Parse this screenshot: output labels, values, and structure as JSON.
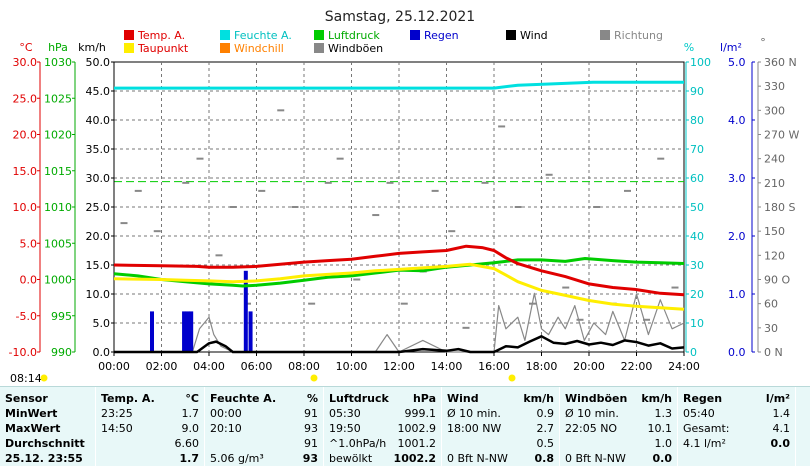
{
  "chart_data": {
    "type": "line",
    "title": "Samstag, 25.12.2021",
    "x_ticks": [
      "00:00",
      "02:00",
      "04:00",
      "06:00",
      "08:00",
      "10:00",
      "12:00",
      "14:00",
      "16:00",
      "18:00",
      "20:00",
      "22:00",
      "24:00"
    ],
    "xlim": [
      0,
      24
    ],
    "axes": {
      "temp": {
        "unit": "°C",
        "range": [
          -10,
          30
        ],
        "ticks": [
          "30.0",
          "25.0",
          "20.0",
          "15.0",
          "10.0",
          "5.0",
          "0.0",
          "-5.0",
          "-10.0"
        ],
        "color": "#e00000"
      },
      "pressure": {
        "unit": "hPa",
        "range": [
          990,
          1030
        ],
        "ticks": [
          "1030",
          "1025",
          "1020",
          "1015",
          "1010",
          "1005",
          "1000",
          "995",
          "990"
        ],
        "color": "#00aa00"
      },
      "wind": {
        "unit": "km/h",
        "range": [
          0,
          50
        ],
        "ticks": [
          "50.0",
          "45.0",
          "40.0",
          "35.0",
          "30.0",
          "25.0",
          "20.0",
          "15.0",
          "10.0",
          "5.0",
          "0.0"
        ],
        "color": "#000000"
      },
      "humidity": {
        "unit": "%",
        "range": [
          0,
          100
        ],
        "ticks": [
          "100",
          "90",
          "80",
          "70",
          "60",
          "50",
          "40",
          "30",
          "20",
          "10",
          "0"
        ],
        "color": "#00c8c8"
      },
      "rain": {
        "unit": "l/m²",
        "range": [
          0,
          5
        ],
        "ticks": [
          "5.0",
          "4.0",
          "3.0",
          "2.0",
          "1.0",
          "0.0"
        ],
        "color": "#0000cc"
      },
      "direction": {
        "unit": "°",
        "range": [
          0,
          360
        ],
        "ticks": [
          "360 N",
          "330",
          "300",
          "270 W",
          "240",
          "210",
          "180 S",
          "150",
          "120",
          "90 O",
          "60",
          "30",
          "0 N"
        ],
        "color": "#666666"
      }
    },
    "legend": [
      {
        "name": "Temp. A.",
        "color": "#e00000"
      },
      {
        "name": "Feuchte A.",
        "color": "#00e0e0"
      },
      {
        "name": "Luftdruck",
        "color": "#00cc00"
      },
      {
        "name": "Regen",
        "color": "#0000cc"
      },
      {
        "name": "Wind",
        "color": "#000000"
      },
      {
        "name": "Richtung",
        "color": "#888888"
      },
      {
        "name": "Taupunkt",
        "color": "#ffee00"
      },
      {
        "name": "Windchill",
        "color": "#ff8000"
      },
      {
        "name": "Windböen",
        "color": "#888888"
      }
    ],
    "series": [
      {
        "name": "Temp. A.",
        "axis": "temp",
        "color": "#e00000",
        "points": [
          [
            0,
            2.0
          ],
          [
            2,
            1.9
          ],
          [
            3.5,
            1.8
          ],
          [
            4,
            1.7
          ],
          [
            5,
            1.7
          ],
          [
            6,
            1.8
          ],
          [
            7,
            2.1
          ],
          [
            8,
            2.4
          ],
          [
            9,
            2.6
          ],
          [
            10,
            2.8
          ],
          [
            11,
            3.2
          ],
          [
            12,
            3.6
          ],
          [
            13,
            3.8
          ],
          [
            14,
            4.0
          ],
          [
            14.83,
            4.6
          ],
          [
            15.5,
            4.4
          ],
          [
            16,
            4.0
          ],
          [
            16.5,
            3.0
          ],
          [
            17,
            2.2
          ],
          [
            18,
            1.2
          ],
          [
            19,
            0.4
          ],
          [
            20,
            -0.6
          ],
          [
            21,
            -1.1
          ],
          [
            22,
            -1.4
          ],
          [
            23,
            -1.9
          ],
          [
            24,
            -2.1
          ]
        ]
      },
      {
        "name": "Taupunkt",
        "axis": "temp",
        "color": "#ffee00",
        "points": [
          [
            0,
            0.1
          ],
          [
            2,
            0.0
          ],
          [
            3,
            -0.1
          ],
          [
            4,
            -0.2
          ],
          [
            5,
            -0.3
          ],
          [
            6,
            -0.2
          ],
          [
            7,
            0.1
          ],
          [
            8,
            0.5
          ],
          [
            9,
            0.7
          ],
          [
            10,
            0.9
          ],
          [
            11,
            1.2
          ],
          [
            12,
            1.4
          ],
          [
            13,
            1.6
          ],
          [
            14,
            1.8
          ],
          [
            15,
            2.1
          ],
          [
            16,
            1.5
          ],
          [
            16.5,
            0.6
          ],
          [
            17,
            -0.3
          ],
          [
            18,
            -1.5
          ],
          [
            19,
            -2.2
          ],
          [
            20,
            -2.9
          ],
          [
            21,
            -3.4
          ],
          [
            22,
            -3.7
          ],
          [
            23,
            -3.9
          ],
          [
            24,
            -4.1
          ]
        ]
      },
      {
        "name": "Luftdruck",
        "axis": "pressure",
        "color": "#00cc00",
        "points": [
          [
            0,
            1000.8
          ],
          [
            1,
            1000.5
          ],
          [
            2,
            1000.0
          ],
          [
            3,
            999.7
          ],
          [
            4,
            999.4
          ],
          [
            5,
            999.2
          ],
          [
            5.42,
            999.1
          ],
          [
            6,
            999.2
          ],
          [
            7,
            999.5
          ],
          [
            8,
            999.9
          ],
          [
            9,
            1000.3
          ],
          [
            10,
            1000.5
          ],
          [
            11,
            1000.9
          ],
          [
            12,
            1001.3
          ],
          [
            13,
            1001.2
          ],
          [
            14,
            1001.7
          ],
          [
            15,
            1002.0
          ],
          [
            16,
            1002.3
          ],
          [
            17,
            1002.7
          ],
          [
            18,
            1002.7
          ],
          [
            19,
            1002.5
          ],
          [
            19.83,
            1002.9
          ],
          [
            21,
            1002.6
          ],
          [
            22,
            1002.4
          ],
          [
            23,
            1002.3
          ],
          [
            24,
            1002.2
          ]
        ]
      },
      {
        "name": "Feuchte A.",
        "axis": "humidity",
        "color": "#00e0e0",
        "points": [
          [
            0,
            91
          ],
          [
            16,
            91
          ],
          [
            17,
            92
          ],
          [
            20.17,
            93
          ],
          [
            24,
            93
          ]
        ]
      },
      {
        "name": "Wind",
        "axis": "wind",
        "color": "#000000",
        "points": [
          [
            0,
            0
          ],
          [
            3.5,
            0
          ],
          [
            4,
            1.5
          ],
          [
            4.3,
            1.8
          ],
          [
            4.7,
            1.0
          ],
          [
            5,
            0
          ],
          [
            6,
            0
          ],
          [
            12,
            0
          ],
          [
            13,
            0.5
          ],
          [
            14,
            0.2
          ],
          [
            14.5,
            0.5
          ],
          [
            15,
            0
          ],
          [
            16,
            0
          ],
          [
            16.5,
            1.0
          ],
          [
            17,
            0.8
          ],
          [
            17.5,
            1.8
          ],
          [
            18,
            2.7
          ],
          [
            18.5,
            1.6
          ],
          [
            19,
            1.4
          ],
          [
            19.5,
            1.9
          ],
          [
            20,
            1.3
          ],
          [
            20.5,
            1.6
          ],
          [
            21,
            1.2
          ],
          [
            21.5,
            2.0
          ],
          [
            22,
            1.7
          ],
          [
            22.5,
            1.1
          ],
          [
            23,
            1.5
          ],
          [
            23.5,
            0.6
          ],
          [
            24,
            0.8
          ]
        ]
      },
      {
        "name": "Windböen",
        "axis": "wind",
        "color": "#888888",
        "points": [
          [
            0,
            0
          ],
          [
            3.3,
            0
          ],
          [
            3.6,
            4
          ],
          [
            4,
            6
          ],
          [
            4.2,
            3
          ],
          [
            4.5,
            1
          ],
          [
            5,
            0
          ],
          [
            11,
            0
          ],
          [
            11.5,
            3
          ],
          [
            12,
            0
          ],
          [
            13,
            2
          ],
          [
            14,
            0
          ],
          [
            16,
            0
          ],
          [
            16.2,
            8
          ],
          [
            16.5,
            4
          ],
          [
            17,
            6
          ],
          [
            17.3,
            2
          ],
          [
            17.7,
            10.1
          ],
          [
            18,
            4
          ],
          [
            18.3,
            3
          ],
          [
            18.7,
            6
          ],
          [
            19,
            4
          ],
          [
            19.4,
            8
          ],
          [
            19.8,
            2
          ],
          [
            20.2,
            5
          ],
          [
            20.7,
            3
          ],
          [
            21,
            7
          ],
          [
            21.5,
            2
          ],
          [
            22,
            10
          ],
          [
            22.5,
            3
          ],
          [
            23,
            9
          ],
          [
            23.5,
            4
          ],
          [
            24,
            5
          ]
        ]
      },
      {
        "name": "Richtung",
        "axis": "direction",
        "color": "#888888",
        "style": "dots",
        "points": [
          [
            0.4,
            160
          ],
          [
            1,
            200
          ],
          [
            1.8,
            150
          ],
          [
            2.5,
            90
          ],
          [
            3,
            210
          ],
          [
            3.6,
            240
          ],
          [
            4.4,
            120
          ],
          [
            5,
            180
          ],
          [
            5.6,
            60
          ],
          [
            6.2,
            200
          ],
          [
            7,
            300
          ],
          [
            7.6,
            180
          ],
          [
            8.3,
            60
          ],
          [
            9,
            210
          ],
          [
            9.5,
            240
          ],
          [
            10.2,
            90
          ],
          [
            11,
            170
          ],
          [
            11.6,
            210
          ],
          [
            12.2,
            60
          ],
          [
            13,
            100
          ],
          [
            13.5,
            200
          ],
          [
            14.2,
            150
          ],
          [
            14.8,
            30
          ],
          [
            15.6,
            210
          ],
          [
            16.3,
            280
          ],
          [
            17,
            180
          ],
          [
            17.6,
            60
          ],
          [
            18.3,
            220
          ],
          [
            19,
            80
          ],
          [
            19.6,
            40
          ],
          [
            20.3,
            180
          ],
          [
            21,
            60
          ],
          [
            21.6,
            200
          ],
          [
            22.4,
            40
          ],
          [
            23,
            240
          ],
          [
            23.6,
            80
          ]
        ]
      },
      {
        "name": "Regen",
        "axis": "rain",
        "color": "#0000cc",
        "style": "bars",
        "points": [
          [
            1.6,
            0.7
          ],
          [
            2.95,
            0.7
          ],
          [
            3.1,
            0.7
          ],
          [
            3.25,
            0.7
          ],
          [
            5.55,
            1.4
          ],
          [
            5.75,
            0.7
          ]
        ]
      }
    ]
  },
  "update_time": "08:14",
  "summary": {
    "sensor": {
      "header": "Sensor",
      "rows": [
        "MinWert",
        "MaxWert",
        "Durchschnitt",
        "25.12. 23:55"
      ]
    },
    "temp": {
      "header": "Temp. A.",
      "unit": "°C",
      "rows": [
        [
          "23:25",
          "1.7"
        ],
        [
          "14:50",
          "9.0"
        ],
        [
          "",
          "6.60"
        ],
        [
          "",
          "1.7"
        ]
      ]
    },
    "humidity": {
      "header": "Feuchte A.",
      "unit": "%",
      "rows": [
        [
          "00:00",
          "91"
        ],
        [
          "20:10",
          "93"
        ],
        [
          "",
          "91"
        ],
        [
          "5.06 g/m³",
          "93"
        ]
      ]
    },
    "pressure": {
      "header": "Luftdruck",
      "unit": "hPa",
      "rows": [
        [
          "05:30",
          "999.1"
        ],
        [
          "19:50",
          "1002.9"
        ],
        [
          "^1.0hPa/h",
          "1001.2"
        ],
        [
          "bewölkt",
          "1002.2"
        ]
      ]
    },
    "wind": {
      "header": "Wind",
      "unit": "km/h",
      "rows": [
        [
          "Ø 10 min.",
          "0.9"
        ],
        [
          "18:00  NW",
          "2.7"
        ],
        [
          "",
          "0.5"
        ],
        [
          "0 Bft N-NW",
          "0.8"
        ]
      ]
    },
    "gusts": {
      "header": "Windböen",
      "unit": "km/h",
      "rows": [
        [
          "Ø 10 min.",
          "1.3"
        ],
        [
          "22:05  NO",
          "10.1"
        ],
        [
          "",
          "1.0"
        ],
        [
          "0 Bft N-NW",
          "0.0"
        ]
      ]
    },
    "rain": {
      "header": "Regen",
      "unit": "l/m²",
      "rows": [
        [
          "",
          ""
        ],
        [
          "05:40",
          "1.4"
        ],
        [
          "Gesamt:",
          "4.1"
        ],
        [
          "4.1 l/m²",
          "0.0"
        ]
      ]
    }
  }
}
